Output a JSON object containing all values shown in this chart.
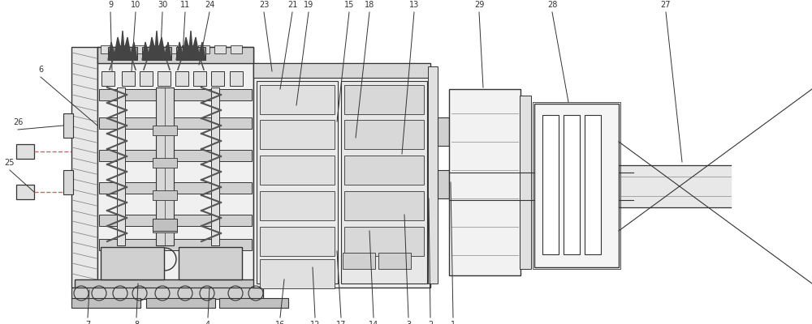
{
  "bg_color": "#ffffff",
  "lc": "#333333",
  "gc": "#888888",
  "lgc": "#cccccc",
  "dgc": "#555555",
  "dashed_color": "#cc6666",
  "figsize": [
    10.0,
    4.0
  ],
  "dpi": 100,
  "label_fs": 7.0
}
